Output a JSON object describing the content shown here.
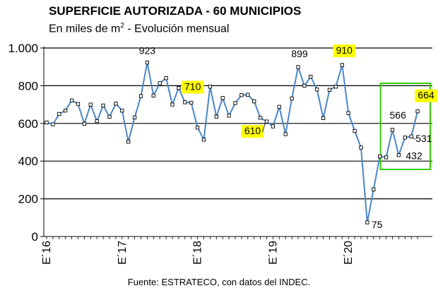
{
  "title": "SUPERFICIE AUTORIZADA - 60 MUNICIPIOS",
  "subtitle_prefix": "En miles de m",
  "subtitle_sup": "2",
  "subtitle_suffix": " - Evolución mensual",
  "source": "Fuente: ESTRATECO, con datos del INDEC.",
  "colors": {
    "line": "#4a86c8",
    "highlight": "#ffff00",
    "box": "#33cc00",
    "axis": "#000000",
    "grid": "#000000"
  },
  "chart_data": {
    "type": "line",
    "title": "SUPERFICIE AUTORIZADA - 60 MUNICIPIOS",
    "subtitle": "En miles de m2 - Evolución mensual",
    "ylim": [
      0,
      1000
    ],
    "yticks": [
      0,
      200,
      400,
      600,
      800,
      1000
    ],
    "ytick_labels": [
      "0",
      "200",
      "400",
      "600",
      "800",
      "1.000"
    ],
    "xtick_labels": [
      {
        "index": 0,
        "label": "E´16"
      },
      {
        "index": 12,
        "label": "E´17"
      },
      {
        "index": 24,
        "label": "E´18"
      },
      {
        "index": 36,
        "label": "E´19"
      },
      {
        "index": 48,
        "label": "E´20"
      }
    ],
    "grid": "horizontal",
    "series": [
      {
        "values": [
          605,
          595,
          650,
          668,
          722,
          703,
          598,
          700,
          612,
          695,
          635,
          705,
          668,
          503,
          632,
          745,
          923,
          748,
          813,
          840,
          700,
          788,
          712,
          710,
          578,
          514,
          795,
          636,
          735,
          641,
          708,
          750,
          752,
          717,
          630,
          610,
          584,
          688,
          543,
          732,
          899,
          800,
          848,
          780,
          628,
          778,
          795,
          910,
          655,
          560,
          472,
          75,
          250,
          425,
          420,
          566,
          432,
          525,
          531,
          664
        ]
      }
    ],
    "annotations": [
      {
        "index": 16,
        "label": "923",
        "highlight": false
      },
      {
        "index": 23,
        "label": "710",
        "highlight": true
      },
      {
        "index": 35,
        "label": "610",
        "highlight": true
      },
      {
        "index": 40,
        "label": "899",
        "highlight": false
      },
      {
        "index": 47,
        "label": "910",
        "highlight": true
      },
      {
        "index": 51,
        "label": "75",
        "highlight": false
      },
      {
        "index": 55,
        "label": "566",
        "highlight": false
      },
      {
        "index": 56,
        "label": "432",
        "highlight": false
      },
      {
        "index": 58,
        "label": "531",
        "highlight": false
      },
      {
        "index": 59,
        "label": "664",
        "highlight": true
      }
    ],
    "focus_box": {
      "from_index": 54,
      "to_index": 59
    }
  }
}
